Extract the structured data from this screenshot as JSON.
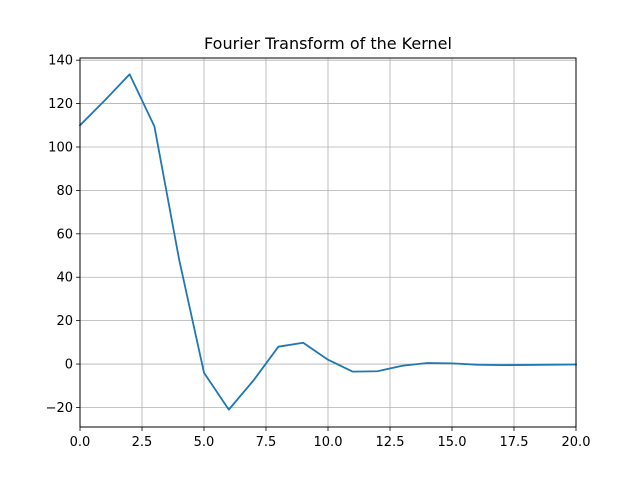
{
  "chart_data": {
    "type": "line",
    "title": "Fourier Transform of the Kernel",
    "xlabel": "",
    "ylabel": "",
    "xlim": [
      0,
      20
    ],
    "ylim": [
      -29,
      141
    ],
    "grid": true,
    "x_ticks": [
      0,
      2.5,
      5,
      7.5,
      10,
      12.5,
      15,
      17.5,
      20
    ],
    "x_tick_labels": [
      "0.0",
      "2.5",
      "5.0",
      "7.5",
      "10.0",
      "12.5",
      "15.0",
      "17.5",
      "20.0"
    ],
    "y_ticks": [
      -20,
      0,
      20,
      40,
      60,
      80,
      100,
      120,
      140
    ],
    "y_tick_labels": [
      "−20",
      "0",
      "20",
      "40",
      "60",
      "80",
      "100",
      "120",
      "140"
    ],
    "series": [
      {
        "color": "#1f77b4",
        "x": [
          0,
          1,
          2,
          3,
          4,
          5,
          6,
          7,
          8,
          9,
          10,
          11,
          12,
          13,
          14,
          15,
          16,
          17,
          18,
          19,
          20
        ],
        "y": [
          110,
          121.5,
          133.5,
          109.5,
          48,
          -4,
          -21,
          -7.5,
          8,
          9.8,
          2,
          -3.5,
          -3.3,
          -0.8,
          0.5,
          0.3,
          -0.3,
          -0.5,
          -0.4,
          -0.3,
          -0.2
        ]
      }
    ]
  }
}
